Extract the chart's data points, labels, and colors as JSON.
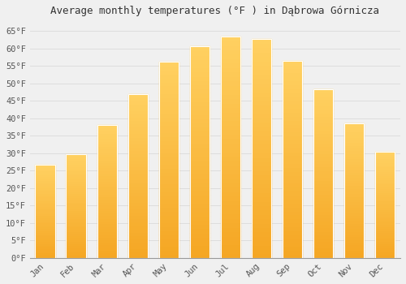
{
  "title": "Average monthly temperatures (°F ) in Dąbrowa Górnicza",
  "months": [
    "Jan",
    "Feb",
    "Mar",
    "Apr",
    "May",
    "Jun",
    "Jul",
    "Aug",
    "Sep",
    "Oct",
    "Nov",
    "Dec"
  ],
  "values": [
    26.6,
    29.8,
    38.1,
    46.9,
    56.1,
    60.6,
    63.5,
    62.8,
    56.5,
    48.4,
    38.5,
    30.4
  ],
  "bar_color_bottom": "#F5A623",
  "bar_color_top": "#FFD060",
  "background_color": "#f0f0f0",
  "grid_color": "#dddddd",
  "ylim": [
    0,
    68
  ],
  "yticks": [
    0,
    5,
    10,
    15,
    20,
    25,
    30,
    35,
    40,
    45,
    50,
    55,
    60,
    65
  ],
  "title_fontsize": 9,
  "tick_fontsize": 7.5,
  "bar_width": 0.65
}
